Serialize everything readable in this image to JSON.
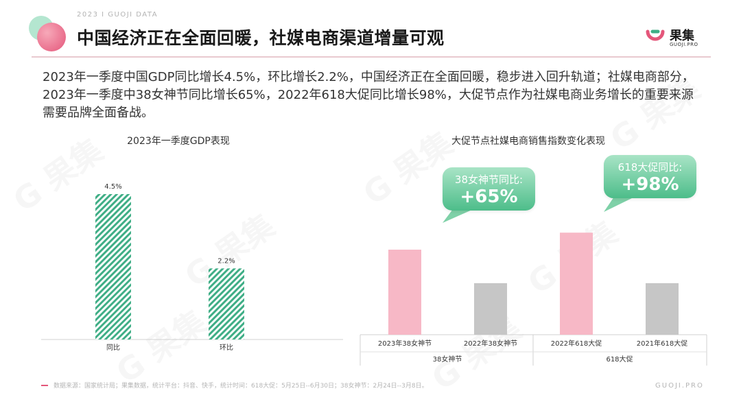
{
  "header": {
    "top_tag": "2023 I GUOJI DATA",
    "title": "中国经济正在全面回暖，社媒电商渠道增量可观"
  },
  "logo": {
    "name": "果集",
    "sub": "GUOJI.PRO"
  },
  "paragraph": "2023年一季度中国GDP同比增长4.5%，环比增长2.2%，中国经济正在全面回暖，稳步进入回升轨道；社媒电商部分，2023年一季度中38女神节同比增长65%，2022年618大促同比增长98%，大促节点作为社媒电商业务增长的重要来源需要品牌全面备战。",
  "colors": {
    "green": "#3fae86",
    "pink": "#f7b8c6",
    "gray": "#c6c6c6",
    "accent": "#e4567a"
  },
  "chart_data": [
    {
      "type": "bar",
      "title": "2023年一季度GDP表现",
      "categories": [
        "同比",
        "环比"
      ],
      "values": [
        4.5,
        2.2
      ],
      "value_labels": [
        "4.5%",
        "2.2%"
      ],
      "ylim": [
        0,
        5.2
      ],
      "grid": false
    },
    {
      "type": "bar",
      "title": "大促节点社媒电商销售指数变化表现",
      "categories": [
        "2023年38女神节",
        "2022年38女神节",
        "2022年618大促",
        "2021年618大促"
      ],
      "groups": [
        "38女神节",
        "618大促"
      ],
      "values": [
        1.65,
        1.0,
        1.98,
        1.0
      ],
      "colors": [
        "#f7b8c6",
        "#c6c6c6",
        "#f7b8c6",
        "#c6c6c6"
      ],
      "ylim": [
        0,
        3.5
      ],
      "grid": false,
      "annotations": [
        {
          "label": "38女神节同比:",
          "value": "+65%"
        },
        {
          "label": "618大促同比:",
          "value": "+98%"
        }
      ]
    }
  ],
  "footer": {
    "source": "数据来源：国家统计局；果集数据，统计平台：抖音、快手，统计时间：618大促：5月25日--6月30日；38女神节：2月24日--3月8日。",
    "brand": "GUOJI.PRO"
  }
}
